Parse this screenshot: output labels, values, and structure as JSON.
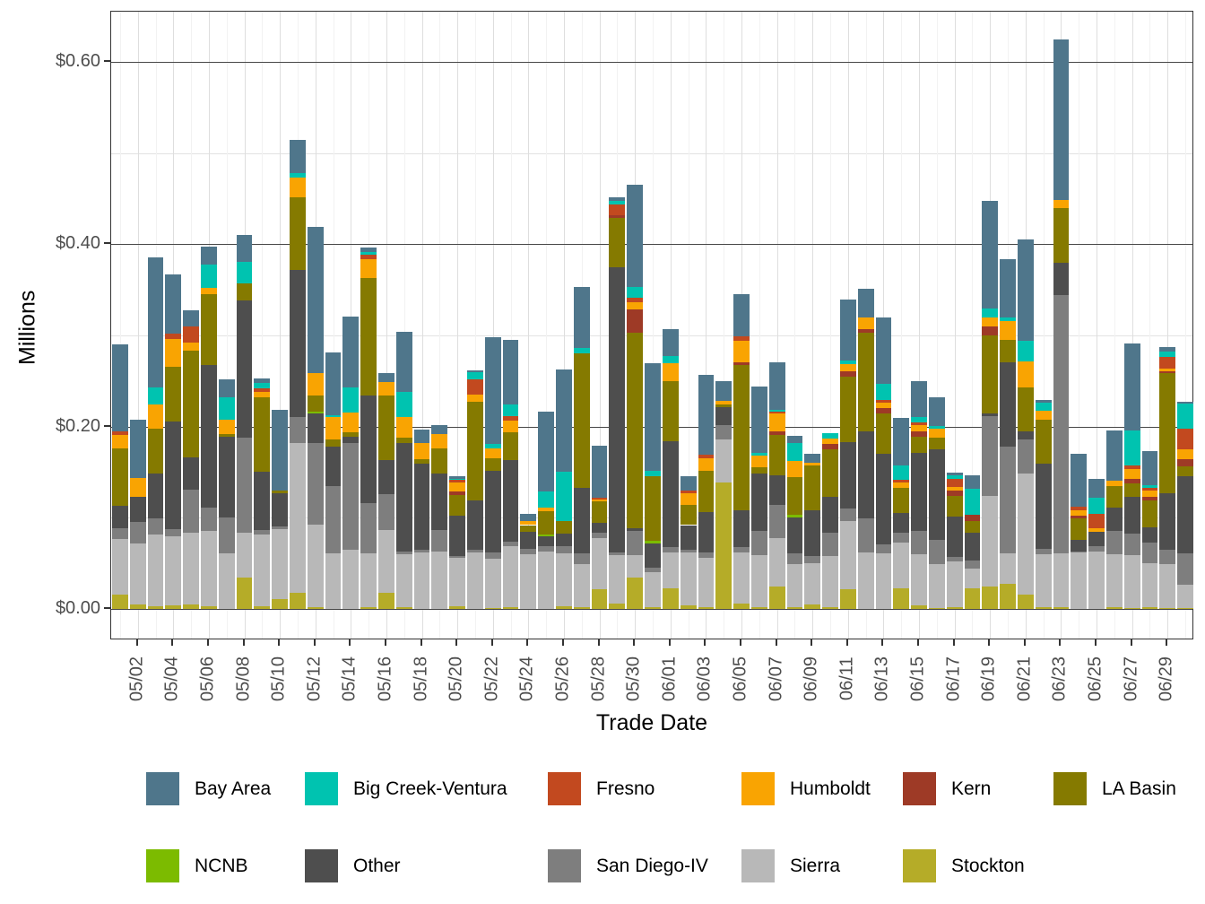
{
  "chart_data": {
    "type": "bar",
    "stacked": true,
    "title": "",
    "xlabel": "Trade Date",
    "ylabel": "Millions",
    "ylim": [
      0,
      0.65
    ],
    "grid": true,
    "legend_position": "bottom",
    "y_ticks": [
      {
        "value": 0.0,
        "label": "$0.00"
      },
      {
        "value": 0.2,
        "label": "$0.20"
      },
      {
        "value": 0.4,
        "label": "$0.40"
      },
      {
        "value": 0.6,
        "label": "$0.60"
      }
    ],
    "y_minor": [
      0.1,
      0.3,
      0.5
    ],
    "x_tick_labels": [
      "05/02",
      "05/04",
      "05/06",
      "05/08",
      "05/10",
      "05/12",
      "05/14",
      "05/16",
      "05/18",
      "05/20",
      "05/22",
      "05/24",
      "05/26",
      "05/28",
      "05/30",
      "06/01",
      "06/03",
      "06/05",
      "06/07",
      "06/09",
      "06/11",
      "06/13",
      "06/15",
      "06/17",
      "06/19",
      "06/21",
      "06/23",
      "06/25",
      "06/27",
      "06/29"
    ],
    "categories": [
      "05/01",
      "05/02",
      "05/03",
      "05/04",
      "05/05",
      "05/06",
      "05/07",
      "05/08",
      "05/09",
      "05/10",
      "05/11",
      "05/12",
      "05/13",
      "05/14",
      "05/15",
      "05/16",
      "05/17",
      "05/18",
      "05/19",
      "05/20",
      "05/21",
      "05/22",
      "05/23",
      "05/24",
      "05/25",
      "05/26",
      "05/27",
      "05/28",
      "05/29",
      "05/30",
      "05/31",
      "06/01",
      "06/02",
      "06/03",
      "06/04",
      "06/05",
      "06/06",
      "06/07",
      "06/08",
      "06/09",
      "06/10",
      "06/11",
      "06/12",
      "06/13",
      "06/14",
      "06/15",
      "06/16",
      "06/17",
      "06/18",
      "06/19",
      "06/20",
      "06/21",
      "06/22",
      "06/23",
      "06/24",
      "06/25",
      "06/26",
      "06/27",
      "06/28",
      "06/29",
      "06/30"
    ],
    "series": [
      {
        "name": "Stockton",
        "color": "#b5ac28",
        "values": [
          0.016,
          0.005,
          0.003,
          0.004,
          0.005,
          0.003,
          0,
          0.034,
          0.003,
          0.011,
          0.018,
          0.002,
          0,
          0,
          0.002,
          0.018,
          0.002,
          0,
          0,
          0.003,
          0,
          0.001,
          0.002,
          0,
          0,
          0.003,
          0.002,
          0.022,
          0.006,
          0.034,
          0.002,
          0.023,
          0.004,
          0.002,
          0.139,
          0.006,
          0.002,
          0.025,
          0.002,
          0.005,
          0.002,
          0.022,
          0,
          0,
          0.023,
          0.004,
          0.001,
          0.002,
          0.023,
          0.025,
          0.028,
          0.016,
          0.002,
          0.002,
          0,
          0,
          0.002,
          0.001,
          0.002,
          0.001,
          0.001
        ]
      },
      {
        "name": "Sierra",
        "color": "#b8b8b8",
        "values": [
          0.061,
          0.067,
          0.079,
          0.076,
          0.079,
          0.083,
          0.061,
          0.05,
          0.079,
          0.077,
          0.164,
          0.09,
          0.061,
          0.065,
          0.059,
          0.069,
          0.058,
          0.062,
          0.063,
          0.053,
          0.062,
          0.054,
          0.067,
          0.06,
          0.063,
          0.058,
          0.047,
          0.056,
          0.053,
          0.025,
          0.038,
          0.039,
          0.058,
          0.054,
          0.047,
          0.056,
          0.057,
          0.053,
          0.047,
          0.045,
          0.056,
          0.074,
          0.062,
          0.061,
          0.05,
          0.056,
          0.048,
          0.05,
          0.021,
          0.099,
          0.033,
          0.133,
          0.058,
          0.059,
          0.062,
          0.063,
          0.058,
          0.058,
          0.048,
          0.048,
          0.026
        ]
      },
      {
        "name": "San Diego-IV",
        "color": "#7e7e7e",
        "values": [
          0.012,
          0.023,
          0.017,
          0.008,
          0.047,
          0.025,
          0.039,
          0.104,
          0.005,
          0.003,
          0.029,
          0.09,
          0.074,
          0.117,
          0.055,
          0.039,
          0.003,
          0.003,
          0.024,
          0.002,
          0.003,
          0.007,
          0.005,
          0.006,
          0.006,
          0.008,
          0.012,
          0.006,
          0.003,
          0.027,
          0.005,
          0.006,
          0.003,
          0.006,
          0.016,
          0.006,
          0.027,
          0.036,
          0.012,
          0.008,
          0.026,
          0.014,
          0.037,
          0.01,
          0.011,
          0.026,
          0.027,
          0.005,
          0.009,
          0.088,
          0.117,
          0.037,
          0.006,
          0.283,
          0.001,
          0.006,
          0.026,
          0.024,
          0.023,
          0.016,
          0.034
        ]
      },
      {
        "name": "Other",
        "color": "#4e4e4e",
        "values": [
          0.024,
          0.028,
          0.05,
          0.118,
          0.035,
          0.157,
          0.089,
          0.15,
          0.064,
          0.036,
          0.161,
          0.032,
          0.043,
          0.007,
          0.118,
          0.037,
          0.119,
          0.094,
          0.062,
          0.044,
          0.054,
          0.09,
          0.089,
          0.019,
          0.011,
          0.014,
          0.072,
          0.01,
          0.313,
          0.003,
          0.027,
          0.116,
          0.027,
          0.044,
          0.019,
          0.04,
          0.063,
          0.033,
          0.039,
          0.05,
          0.039,
          0.073,
          0.096,
          0.099,
          0.021,
          0.085,
          0.099,
          0.044,
          0.031,
          0.002,
          0.093,
          0.009,
          0.093,
          0.036,
          0.013,
          0.016,
          0.025,
          0.04,
          0.017,
          0.062,
          0.085
        ]
      },
      {
        "name": "NCNB",
        "color": "#7cbb00",
        "values": [
          0,
          0,
          0,
          0,
          0,
          0,
          0,
          0,
          0,
          0,
          0,
          0.002,
          0,
          0,
          0,
          0,
          0,
          0,
          0,
          0,
          0,
          0,
          0,
          0,
          0.002,
          0,
          0,
          0,
          0,
          0,
          0.003,
          0,
          0,
          0,
          0,
          0,
          0,
          0,
          0.003,
          0,
          0,
          0,
          0,
          0,
          0,
          0,
          0,
          0,
          0,
          0,
          0,
          0,
          0,
          0,
          0,
          0,
          0,
          0,
          0,
          0,
          0
        ]
      },
      {
        "name": "LA Basin",
        "color": "#857a00",
        "values": [
          0.063,
          0,
          0.049,
          0.06,
          0.117,
          0.077,
          0.003,
          0.019,
          0.081,
          0.003,
          0.08,
          0.018,
          0.008,
          0.005,
          0.129,
          0.071,
          0.006,
          0.005,
          0.027,
          0.023,
          0.108,
          0.013,
          0.031,
          0.007,
          0.025,
          0.013,
          0.147,
          0.024,
          0.054,
          0.214,
          0.071,
          0.066,
          0.022,
          0.046,
          0.003,
          0.16,
          0.006,
          0.044,
          0.042,
          0.049,
          0.052,
          0.072,
          0.108,
          0.044,
          0.028,
          0.018,
          0.013,
          0.023,
          0.012,
          0.086,
          0.024,
          0.048,
          0.049,
          0.06,
          0.023,
          0,
          0.024,
          0.015,
          0.029,
          0.132,
          0.01
        ]
      },
      {
        "name": "Kern",
        "color": "#9e3a26",
        "values": [
          0,
          0,
          0,
          0,
          0,
          0,
          0,
          0,
          0,
          0,
          0,
          0,
          0,
          0,
          0,
          0,
          0,
          0,
          0,
          0.004,
          0,
          0,
          0,
          0,
          0,
          0,
          0,
          0,
          0.003,
          0.026,
          0,
          0,
          0,
          0,
          0,
          0.003,
          0,
          0.004,
          0,
          0,
          0.006,
          0.006,
          0.004,
          0.006,
          0,
          0.006,
          0,
          0.006,
          0.007,
          0.01,
          0,
          0,
          0,
          0,
          0.003,
          0,
          0,
          0.005,
          0.004,
          0.002,
          0.008
        ]
      },
      {
        "name": "Humboldt",
        "color": "#f9a402",
        "values": [
          0.015,
          0.021,
          0.026,
          0.03,
          0.009,
          0.007,
          0.016,
          0,
          0.006,
          0,
          0.021,
          0.025,
          0.025,
          0.021,
          0.021,
          0.015,
          0.023,
          0.018,
          0.016,
          0.01,
          0.008,
          0.011,
          0.013,
          0.004,
          0.004,
          0,
          0,
          0.002,
          0,
          0.007,
          0,
          0.02,
          0.013,
          0.013,
          0.004,
          0.023,
          0.013,
          0.019,
          0.017,
          0.003,
          0.006,
          0.008,
          0.013,
          0.006,
          0.006,
          0.007,
          0.01,
          0.004,
          0,
          0.01,
          0.021,
          0.029,
          0.009,
          0.009,
          0.006,
          0.004,
          0.006,
          0.01,
          0.007,
          0.003,
          0.011
        ]
      },
      {
        "name": "Fresno",
        "color": "#c2491f",
        "values": [
          0.004,
          0,
          0,
          0.006,
          0.018,
          0,
          0,
          0,
          0.004,
          0,
          0,
          0,
          0,
          0,
          0.005,
          0,
          0,
          0,
          0,
          0.003,
          0.017,
          0,
          0.005,
          0,
          0,
          0,
          0,
          0.002,
          0.012,
          0.005,
          0,
          0,
          0.003,
          0.004,
          0,
          0.005,
          0,
          0.002,
          0,
          0,
          0,
          0,
          0,
          0.003,
          0.003,
          0.003,
          0,
          0.009,
          0,
          0,
          0,
          0,
          0,
          0,
          0.004,
          0.015,
          0,
          0.004,
          0.003,
          0.012,
          0.023
        ]
      },
      {
        "name": "Big Creek-Ventura",
        "color": "#00c3b0",
        "values": [
          0,
          0,
          0.019,
          0,
          0,
          0.026,
          0.024,
          0.024,
          0.006,
          0,
          0.005,
          0,
          0.002,
          0.028,
          0.003,
          0,
          0.027,
          0,
          0,
          0.001,
          0.008,
          0.005,
          0.012,
          0,
          0.018,
          0.055,
          0.006,
          0,
          0.004,
          0.012,
          0.006,
          0.007,
          0,
          0,
          0,
          0,
          0.003,
          0.002,
          0.02,
          0,
          0.006,
          0.004,
          0,
          0.018,
          0.015,
          0.006,
          0.003,
          0.004,
          0.029,
          0.01,
          0.004,
          0.022,
          0.009,
          0,
          0,
          0.018,
          0,
          0.039,
          0.003,
          0.006,
          0.027
        ]
      },
      {
        "name": "Bay Area",
        "color": "#4f768b",
        "values": [
          0.095,
          0.064,
          0.143,
          0.065,
          0.018,
          0.019,
          0.02,
          0.029,
          0.005,
          0.088,
          0.037,
          0.16,
          0.068,
          0.078,
          0.004,
          0.01,
          0.066,
          0.015,
          0.01,
          0.003,
          0.002,
          0.117,
          0.071,
          0.008,
          0.087,
          0.112,
          0.067,
          0.057,
          0.004,
          0.112,
          0.118,
          0.03,
          0.016,
          0.088,
          0.022,
          0.046,
          0.073,
          0.053,
          0.008,
          0.01,
          0,
          0.066,
          0.031,
          0.073,
          0.053,
          0.039,
          0.031,
          0.003,
          0.015,
          0.118,
          0.064,
          0.111,
          0.003,
          0.176,
          0.058,
          0.021,
          0.055,
          0.095,
          0.037,
          0.005,
          0.002
        ]
      }
    ],
    "legend_order": [
      "Bay Area",
      "Big Creek-Ventura",
      "Fresno",
      "Humboldt",
      "Kern",
      "LA Basin",
      "NCNB",
      "Other",
      "San Diego-IV",
      "Sierra",
      "Stockton"
    ]
  }
}
